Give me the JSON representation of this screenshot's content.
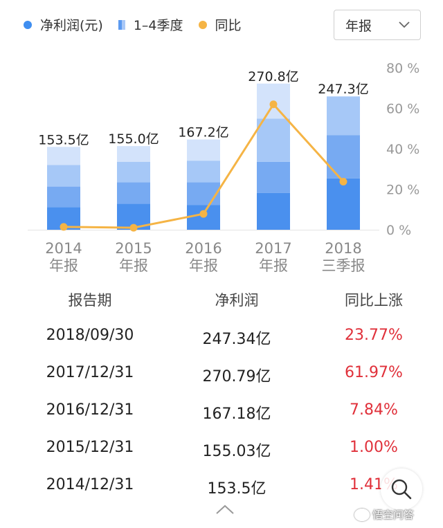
{
  "legend": {
    "net_profit": "净利润(元)",
    "quarters": "1–4季度",
    "yoy": "同比"
  },
  "period_select": {
    "value": "年报"
  },
  "colors": {
    "legend_net_profit": "#3f8ef0",
    "legend_yoy": "#f5b445",
    "q1": "#4a90ee",
    "q2": "#77aaf2",
    "q3": "#a6c8f7",
    "q4": "#d3e3fb",
    "line": "#f5b445",
    "up": "#e0303a"
  },
  "chart_data": {
    "type": "bar",
    "stacked": true,
    "categories": [
      {
        "line1": "2014",
        "line2": "年报"
      },
      {
        "line1": "2015",
        "line2": "年报"
      },
      {
        "line1": "2016",
        "line2": "年报"
      },
      {
        "line1": "2017",
        "line2": "年报"
      },
      {
        "line1": "2018",
        "line2": "三季报"
      }
    ],
    "totals": [
      153.5,
      155.0,
      167.2,
      270.8,
      247.3
    ],
    "total_labels": [
      "153.5亿",
      "155.0亿",
      "167.2亿",
      "270.8亿",
      "247.3亿"
    ],
    "quarter_series": [
      {
        "values": [
          42,
          48,
          46,
          68,
          95
        ]
      },
      {
        "values": [
          38,
          40,
          42,
          58,
          80
        ]
      },
      {
        "values": [
          40,
          38,
          40,
          80,
          72
        ]
      },
      {
        "values": [
          33.5,
          29,
          39.2,
          64.8,
          null
        ]
      }
    ],
    "bar_ylim": [
      0,
      300
    ],
    "yoy_values": [
      1.41,
      1.0,
      7.84,
      61.97,
      23.77
    ],
    "yoy_ylim": [
      0,
      80
    ],
    "yoy_ticks": [
      "0 %",
      "20 %",
      "40 %",
      "60 %",
      "80 %"
    ]
  },
  "table": {
    "headers": [
      "报告期",
      "净利润",
      "同比上涨"
    ],
    "rows": [
      [
        "2018/09/30",
        "247.34亿",
        "23.77%"
      ],
      [
        "2017/12/31",
        "270.79亿",
        "61.97%"
      ],
      [
        "2016/12/31",
        "167.18亿",
        "7.84%"
      ],
      [
        "2015/12/31",
        "155.03亿",
        "1.00%"
      ],
      [
        "2014/12/31",
        "153.5亿",
        "1.41%"
      ]
    ]
  },
  "watermark": "悟空问答"
}
